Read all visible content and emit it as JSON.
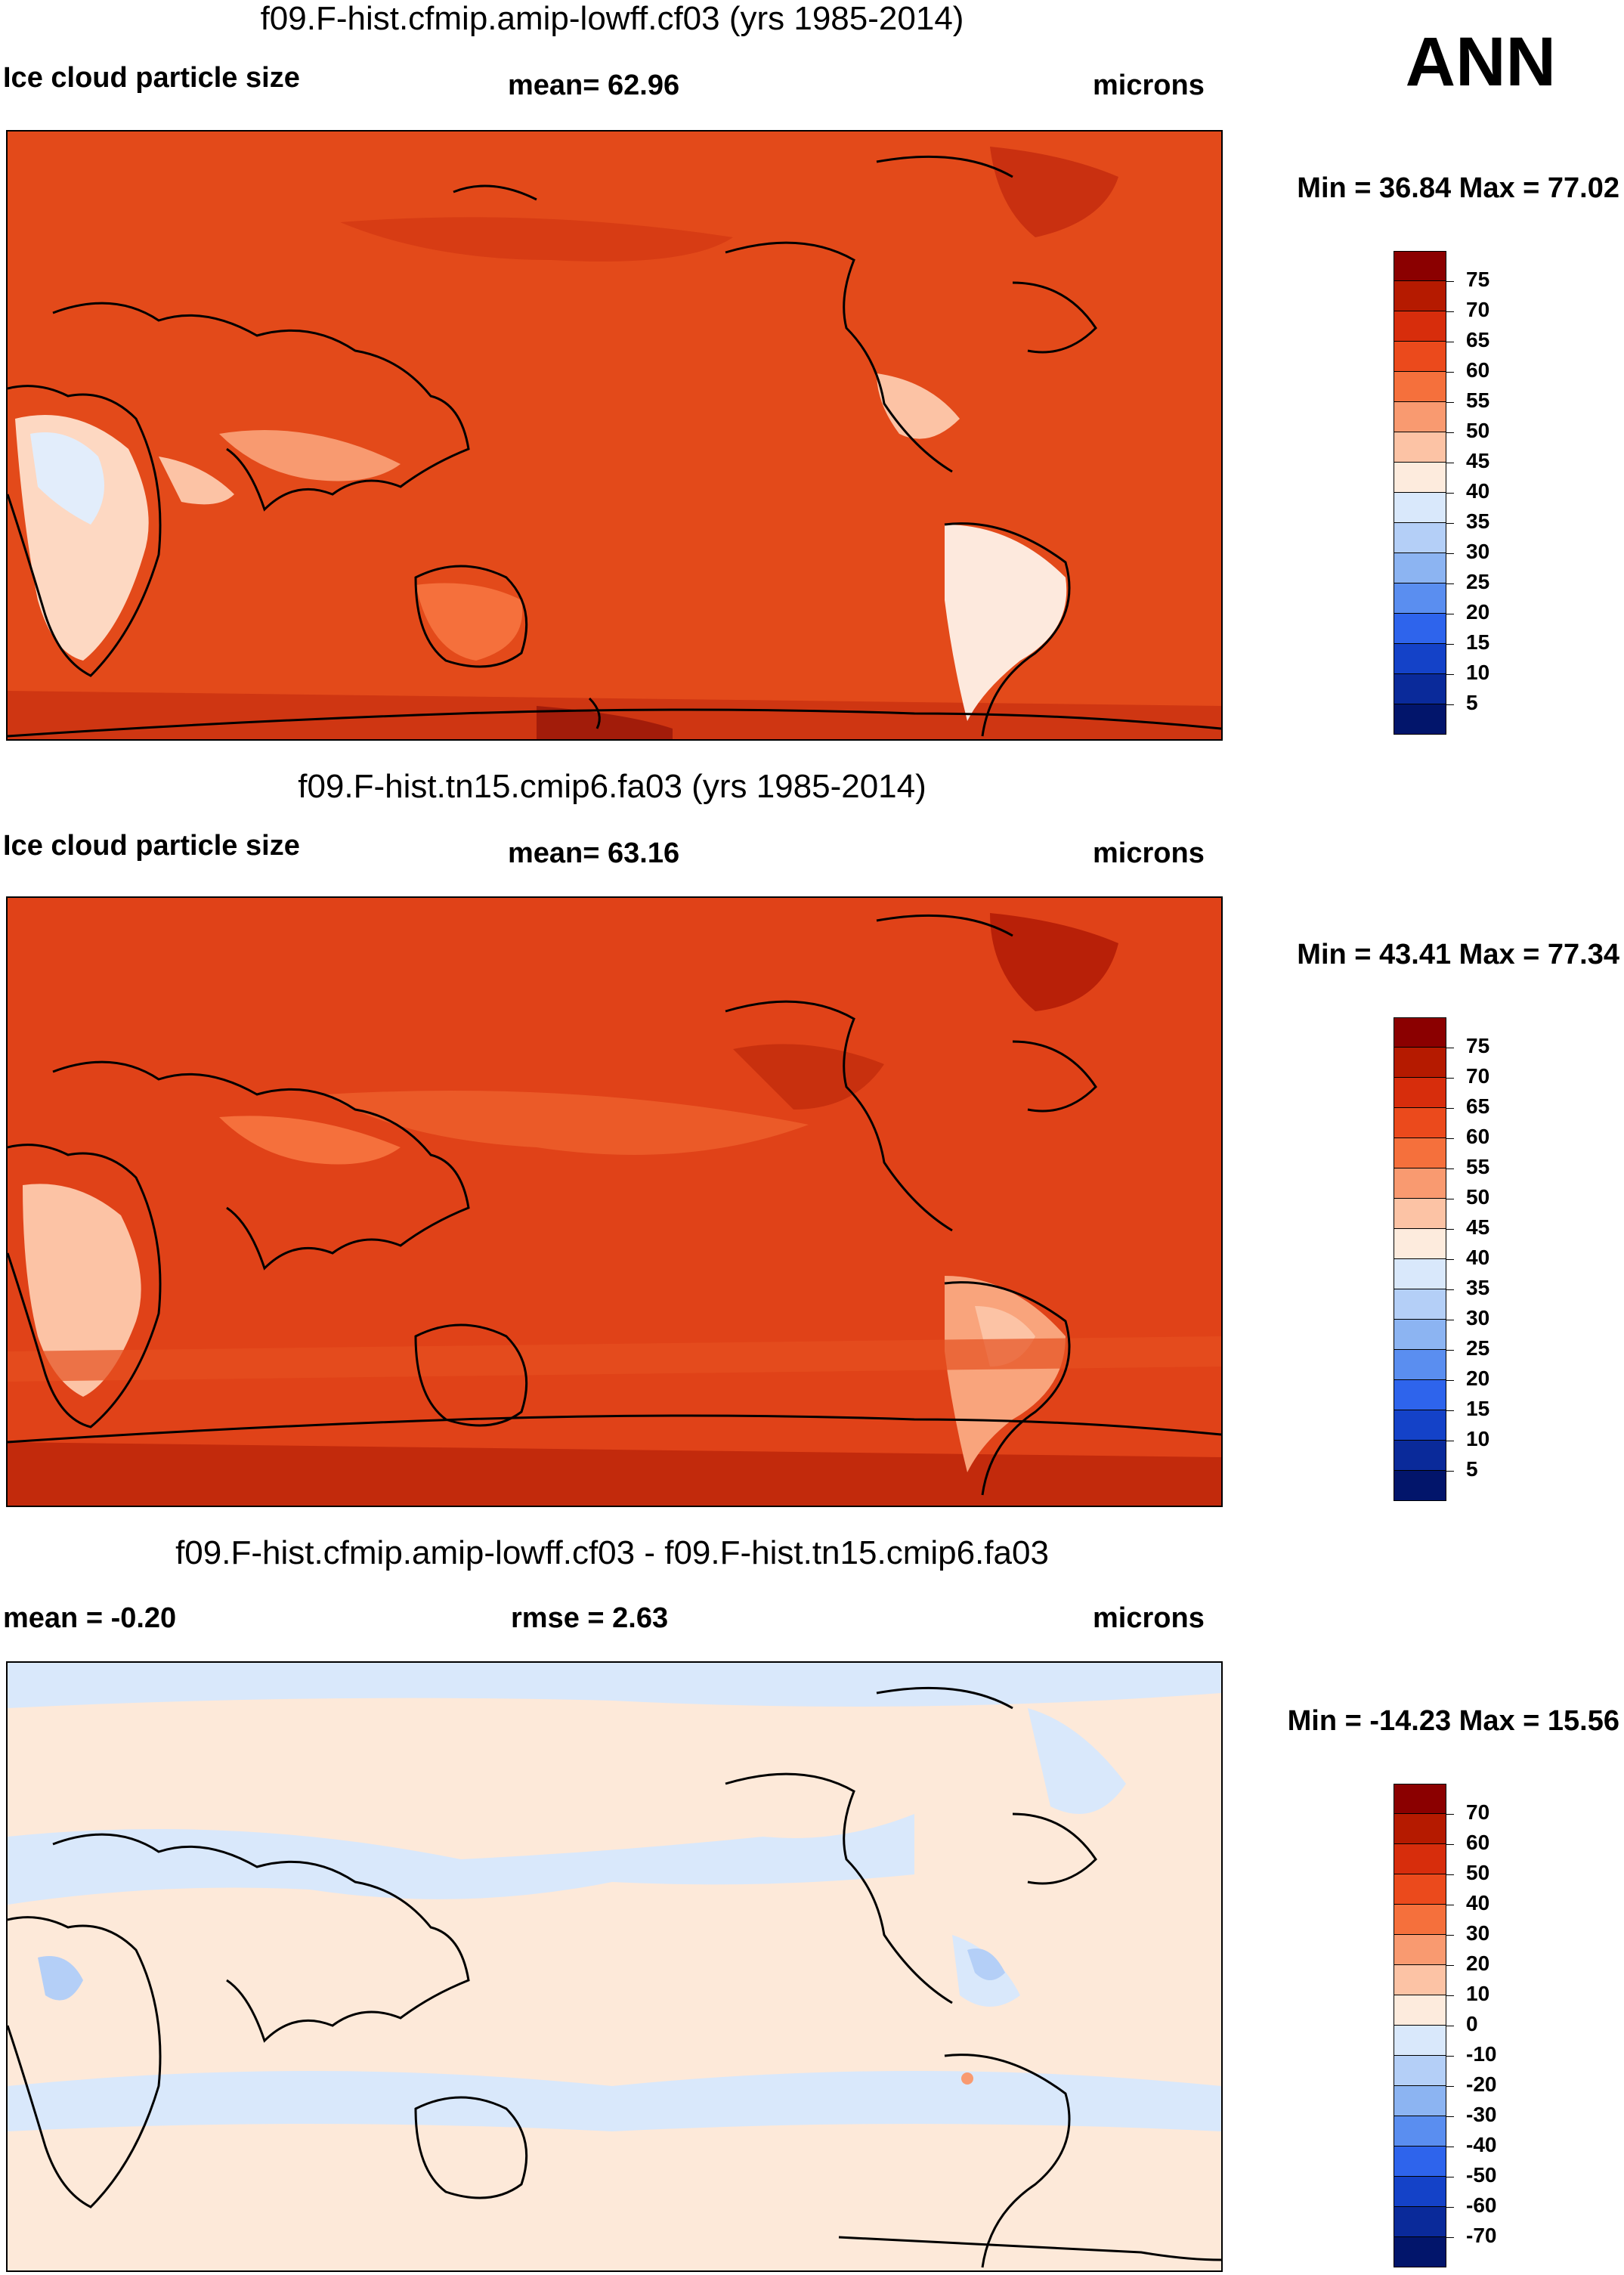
{
  "season": "ANN",
  "panels": [
    {
      "title": "f09.F-hist.cfmip.amip-lowff.cf03 (yrs 1985-2014)",
      "left_label": "Ice cloud particle size",
      "center_label": "mean=  62.96",
      "units": "microns",
      "minmax": "Min =  36.84 Max =  77.02",
      "background": "#e34a1a",
      "colorbar_labels": [
        "75",
        "70",
        "65",
        "60",
        "55",
        "50",
        "45",
        "40",
        "35",
        "30",
        "25",
        "20",
        "15",
        "10",
        "5"
      ]
    },
    {
      "title": "f09.F-hist.tn15.cmip6.fa03 (yrs 1985-2014)",
      "left_label": "Ice cloud particle size",
      "center_label": "mean=  63.16",
      "units": "microns",
      "minmax": "Min =  43.41 Max =  77.34",
      "background": "#e04218",
      "colorbar_labels": [
        "75",
        "70",
        "65",
        "60",
        "55",
        "50",
        "45",
        "40",
        "35",
        "30",
        "25",
        "20",
        "15",
        "10",
        "5"
      ]
    },
    {
      "title": "f09.F-hist.cfmip.amip-lowff.cf03 - f09.F-hist.tn15.cmip6.fa03",
      "left_label": "mean =  -0.20",
      "center_label": "rmse =   2.63",
      "units": "microns",
      "minmax": "Min = -14.23 Max =  15.56",
      "background": "#fde9d9",
      "colorbar_labels": [
        "70",
        "60",
        "50",
        "40",
        "30",
        "20",
        "10",
        "0",
        "-10",
        "-20",
        "-30",
        "-40",
        "-50",
        "-60",
        "-70"
      ]
    }
  ],
  "colorbar_colors": [
    "#8b0000",
    "#b51a00",
    "#d72d0c",
    "#eb4a1c",
    "#f5703c",
    "#f99a70",
    "#fcc3a5",
    "#fdebdd",
    "#d9e8fb",
    "#b4cff7",
    "#8cb4f2",
    "#5a8ef0",
    "#2e64ec",
    "#1442c8",
    "#0a2a9a",
    "#02156b"
  ]
}
